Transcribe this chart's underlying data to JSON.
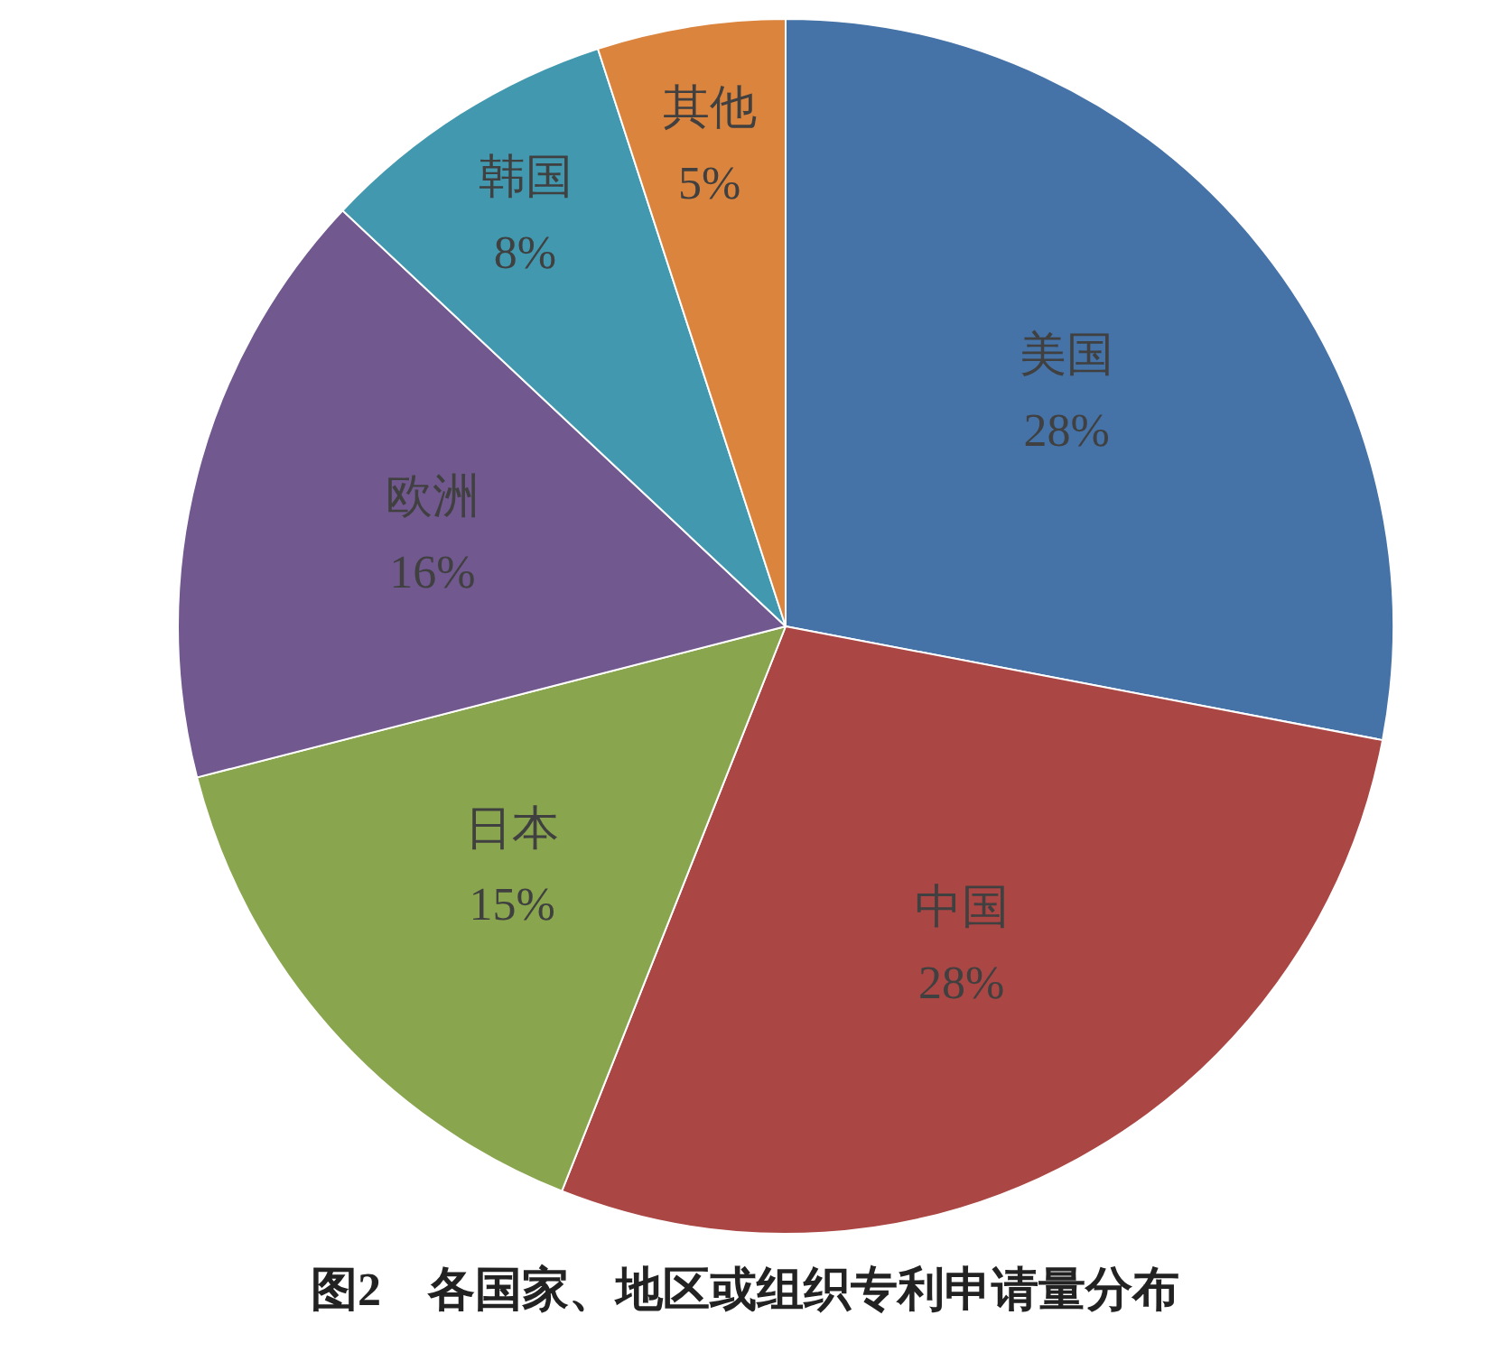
{
  "chart_data": {
    "type": "pie",
    "title": "图2　各国家、地区或组织专利申请量分布",
    "categories": [
      "美国",
      "中国",
      "日本",
      "欧洲",
      "韩国",
      "其他"
    ],
    "values": [
      28,
      28,
      15,
      16,
      8,
      5
    ],
    "colors": [
      "#4572a7",
      "#aa4643",
      "#89a54e",
      "#71588f",
      "#4198af",
      "#db843d"
    ],
    "value_labels": [
      "28%",
      "28%",
      "15%",
      "16%",
      "8%",
      "5%"
    ],
    "legend": false
  }
}
